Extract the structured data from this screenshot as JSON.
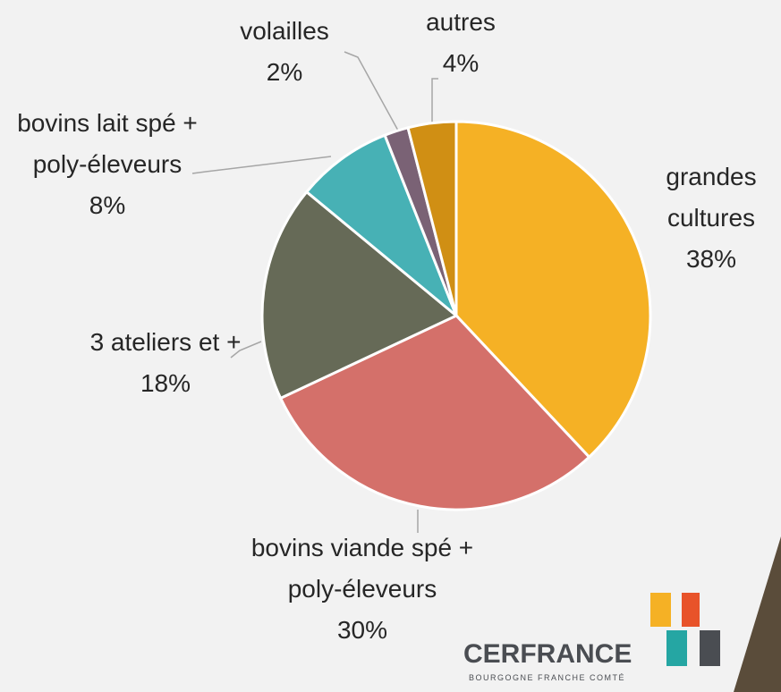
{
  "chart_data": {
    "type": "pie",
    "categories": [
      "grandes cultures",
      "bovins viande spé + poly-éleveurs",
      "3 ateliers et +",
      "bovins lait spé + poly-éleveurs",
      "volailles",
      "autres"
    ],
    "values": [
      38,
      30,
      18,
      8,
      2,
      4
    ],
    "value_labels": [
      "38%",
      "30%",
      "18%",
      "8%",
      "2%",
      "4%"
    ],
    "colors": [
      "#f5b125",
      "#d4706a",
      "#666a57",
      "#47b1b5",
      "#7a6275",
      "#d08f14"
    ]
  },
  "logo": {
    "name": "CERFRANCE",
    "region": "BOURGOGNE FRANCHE COMTÉ"
  }
}
